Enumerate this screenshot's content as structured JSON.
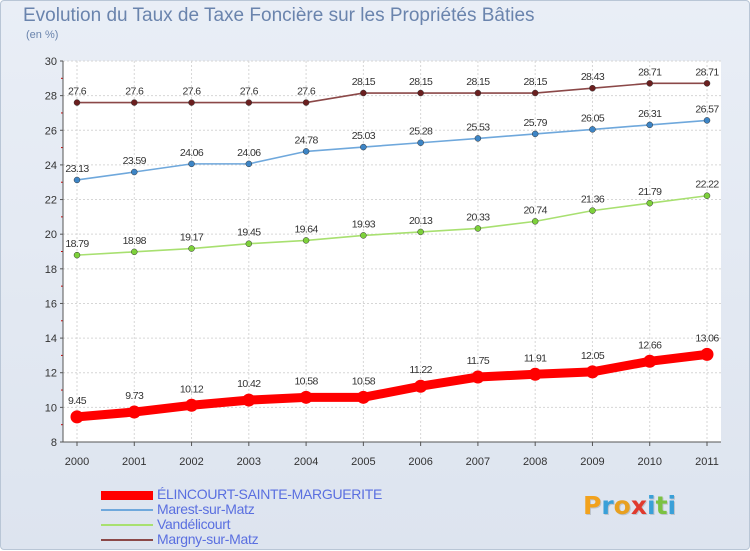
{
  "title": "Evolution du Taux de Taxe Foncière sur les Propriétés Bâties",
  "unit_label": "(en %)",
  "logo": {
    "text": "Proxiti",
    "letters": [
      {
        "ch": "P",
        "color": "#f2a21d"
      },
      {
        "ch": "r",
        "color": "#3aa0d8"
      },
      {
        "ch": "o",
        "color": "#e8a020"
      },
      {
        "ch": "x",
        "color": "#e03a2e"
      },
      {
        "ch": "i",
        "color": "#3aa0d8"
      },
      {
        "ch": "t",
        "color": "#7cc242"
      },
      {
        "ch": "i",
        "color": "#3aa0d8"
      }
    ]
  },
  "chart_data": {
    "type": "line",
    "title": "Evolution du Taux de Taxe Foncière sur les Propriétés Bâties",
    "ylabel": "(en %)",
    "xlabel": "",
    "ylim": [
      8,
      30
    ],
    "yticks": [
      "8",
      "10",
      "12",
      "14",
      "16",
      "18",
      "20",
      "22",
      "24",
      "26",
      "28",
      "30"
    ],
    "x": [
      "2000",
      "2001",
      "2002",
      "2003",
      "2004",
      "2005",
      "2006",
      "2007",
      "2008",
      "2009",
      "2010",
      "2011"
    ],
    "grid": true,
    "legend_position": "bottom-left",
    "series": [
      {
        "name": "ÉLINCOURT-SAINTE-MARGUERITE",
        "color": "#ff0000",
        "marker_color": "#ff0000",
        "bold": true,
        "values": [
          9.45,
          9.73,
          10.12,
          10.42,
          10.58,
          10.58,
          11.22,
          11.75,
          11.91,
          12.05,
          12.66,
          13.06
        ],
        "labels": [
          "9.45",
          "9.73",
          "10.12",
          "10.42",
          "10.58",
          "10.58",
          "11.22",
          "11.75",
          "11.91",
          "12.05",
          "12.66",
          "13.06"
        ]
      },
      {
        "name": "Marest-sur-Matz",
        "color": "#6fa8dc",
        "marker_color": "#3d85c6",
        "bold": false,
        "values": [
          23.13,
          23.59,
          24.06,
          24.06,
          24.78,
          25.03,
          25.28,
          25.53,
          25.79,
          26.05,
          26.31,
          26.57
        ],
        "labels": [
          "23.13",
          "23.59",
          "24.06",
          "24.06",
          "24.78",
          "25.03",
          "25.28",
          "25.53",
          "25.79",
          "26.05",
          "26.31",
          "26.57"
        ]
      },
      {
        "name": "Vandélicourt",
        "color": "#a8e070",
        "marker_color": "#7dd13b",
        "bold": false,
        "values": [
          18.79,
          18.98,
          19.17,
          19.45,
          19.64,
          19.93,
          20.13,
          20.33,
          20.74,
          21.36,
          21.79,
          22.22
        ],
        "labels": [
          "18.79",
          "18.98",
          "19.17",
          "19.45",
          "19.64",
          "19.93",
          "20.13",
          "20.33",
          "20.74",
          "21.36",
          "21.79",
          "22.22"
        ]
      },
      {
        "name": "Margny-sur-Matz",
        "color": "#8b4848",
        "marker_color": "#6b1f1f",
        "bold": false,
        "values": [
          27.6,
          27.6,
          27.6,
          27.6,
          27.6,
          28.15,
          28.15,
          28.15,
          28.15,
          28.43,
          28.71,
          28.71
        ],
        "labels": [
          "27.6",
          "27.6",
          "27.6",
          "27.6",
          "27.6",
          "28.15",
          "28.15",
          "28.15",
          "28.15",
          "28.43",
          "28.71",
          "28.71"
        ]
      }
    ]
  }
}
